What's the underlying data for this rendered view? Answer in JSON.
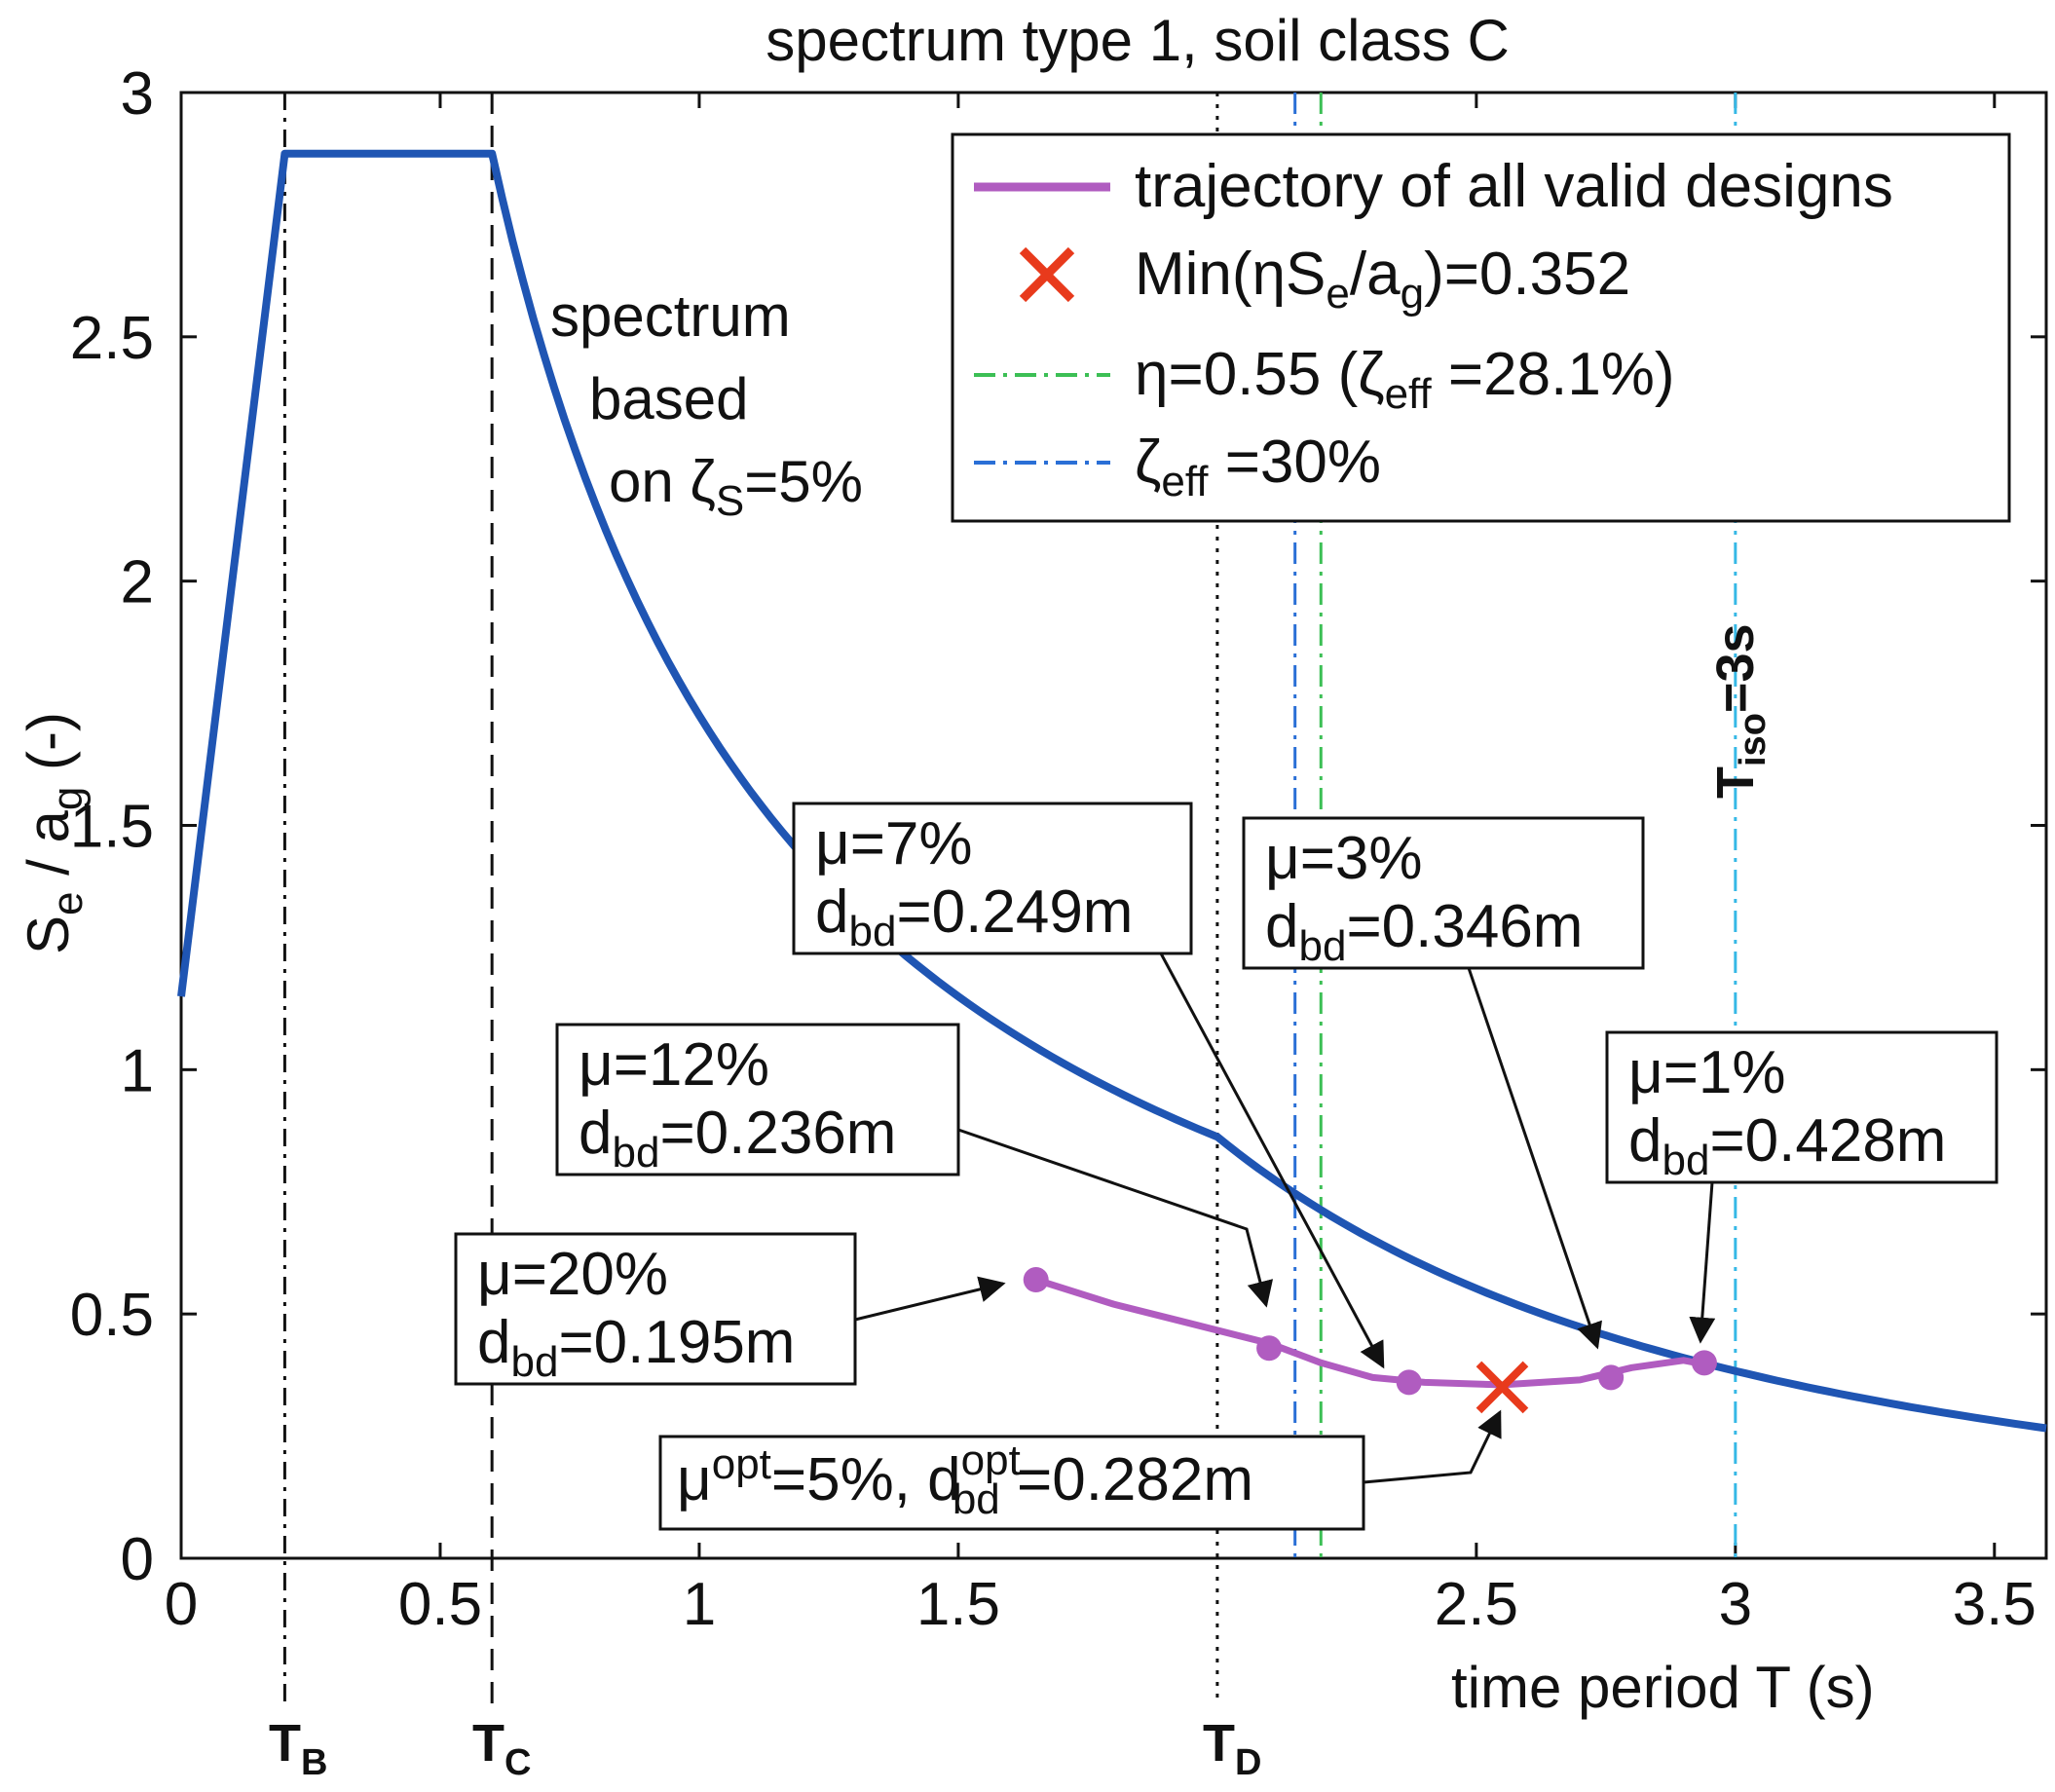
{
  "chart_data": {
    "type": "line",
    "title": "spectrum type 1, soil class C",
    "xlabel": "time period T (s)",
    "ylabel": {
      "main": "S",
      "sub1": "e",
      "sep": " / a",
      "sub2": "g",
      "unit": "  (-)"
    },
    "xlim": [
      0,
      3.6
    ],
    "ylim": [
      0,
      3
    ],
    "xticks": [
      {
        "v": 0,
        "label": "0"
      },
      {
        "v": 0.5,
        "label": "0.5"
      },
      {
        "v": 1,
        "label": "1"
      },
      {
        "v": 1.5,
        "label": "1.5"
      },
      {
        "v": 2.5,
        "label": "2.5"
      },
      {
        "v": 3,
        "label": "3"
      },
      {
        "v": 3.5,
        "label": "3.5"
      }
    ],
    "yticks": [
      {
        "v": 0,
        "label": "0"
      },
      {
        "v": 0.5,
        "label": "0.5"
      },
      {
        "v": 1,
        "label": "1"
      },
      {
        "v": 1.5,
        "label": "1.5"
      },
      {
        "v": 2,
        "label": "2"
      },
      {
        "v": 2.5,
        "label": "2.5"
      },
      {
        "v": 3,
        "label": "3"
      }
    ],
    "spectrum": {
      "name": "spectrum based on ζS=5%",
      "color": "#1f55b3",
      "ag_factor": 1.15,
      "plateau": 2.875,
      "TB": 0.2,
      "TC": 0.6,
      "TD": 2.0,
      "Tmax": 3.6
    },
    "corner_periods": [
      {
        "name": "TB",
        "T": 0.2,
        "label": "T",
        "sub": "B",
        "style": "dashdot"
      },
      {
        "name": "TC",
        "T": 0.6,
        "label": "T",
        "sub": "C",
        "style": "dash"
      },
      {
        "name": "TD",
        "T": 2.0,
        "label": "T",
        "sub": "D",
        "style": "dot"
      }
    ],
    "vertical_lines": [
      {
        "name": "zeta-eff-30",
        "T": 2.15,
        "color": "#2a6fd6"
      },
      {
        "name": "eta-055",
        "T": 2.2,
        "color": "#3cbf55"
      },
      {
        "name": "t-iso",
        "T": 3.0,
        "color": "#36b8e6"
      }
    ],
    "t_iso_label": {
      "main": "T",
      "sub": "iso",
      "tail": "=3s"
    },
    "spectrum_annotation": [
      "spectrum",
      "based",
      "on ζ",
      "S",
      "=5%"
    ],
    "trajectory": {
      "name": "trajectory of all valid designs",
      "color": "#b05cc0",
      "x": [
        1.65,
        1.8,
        1.95,
        2.1,
        2.2,
        2.3,
        2.4,
        2.55,
        2.7,
        2.8,
        2.9,
        2.95
      ],
      "y": [
        0.57,
        0.52,
        0.48,
        0.44,
        0.4,
        0.37,
        0.36,
        0.355,
        0.365,
        0.39,
        0.405,
        0.395
      ],
      "points": [
        {
          "T": 1.65,
          "y": 0.57
        },
        {
          "T": 2.1,
          "y": 0.43
        },
        {
          "T": 2.37,
          "y": 0.36
        },
        {
          "T": 2.76,
          "y": 0.37
        },
        {
          "T": 2.94,
          "y": 0.4
        }
      ]
    },
    "optimum": {
      "T": 2.55,
      "y": 0.35,
      "color": "#e83a1c"
    },
    "legend": [
      {
        "kind": "line",
        "color": "#b05cc0",
        "text": "trajectory of all valid designs"
      },
      {
        "kind": "cross",
        "color": "#e83a1c",
        "parts": [
          "Min(ηS",
          "e",
          "/a",
          "g",
          ")=0.352"
        ]
      },
      {
        "kind": "dashdot",
        "color": "#3cbf55",
        "parts": [
          "η=0.55 (ζ",
          "eff",
          " =28.1%)"
        ]
      },
      {
        "kind": "dashdot",
        "color": "#2a6fd6",
        "parts": [
          "ζ",
          "eff",
          " =30%"
        ]
      }
    ],
    "annotations": [
      {
        "name": "mu-20",
        "mu": "μ=20%",
        "d": "=0.195m"
      },
      {
        "name": "mu-12",
        "mu": "μ=12%",
        "d": "=0.236m"
      },
      {
        "name": "mu-7",
        "mu": "μ=7%",
        "d": "=0.249m"
      },
      {
        "name": "mu-3",
        "mu": "μ=3%",
        "d": "=0.346m"
      },
      {
        "name": "mu-1",
        "mu": "μ=1%",
        "d": "=0.428m"
      }
    ],
    "d_label": {
      "main": "d",
      "sub": "bd"
    },
    "opt_annotation": {
      "mu": "μ",
      "mu_sup": "opt",
      "mu_tail": "=5%, d",
      "d_sup": "opt",
      "d_sub": "bd",
      "d_tail": " =0.282m"
    }
  }
}
